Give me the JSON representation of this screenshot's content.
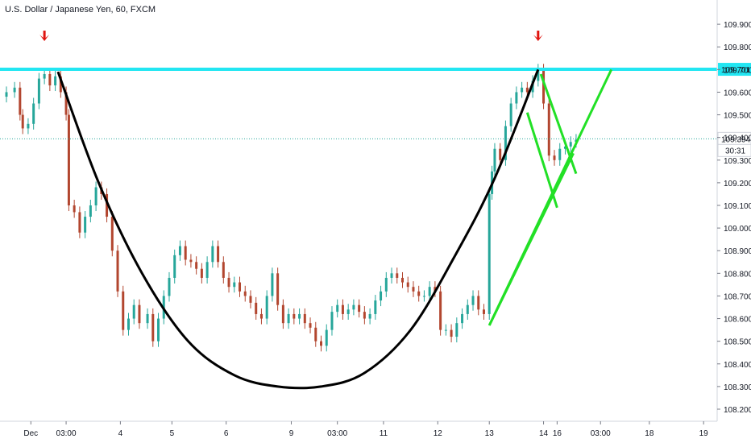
{
  "chart_data": {
    "type": "candlestick",
    "title": "U.S. Dollar / Japanese Yen, 60, FXCM",
    "ylim": [
      108.2,
      110.0
    ],
    "y_ticks": [
      108.2,
      108.3,
      108.4,
      108.5,
      108.6,
      108.7,
      108.8,
      108.9,
      109.0,
      109.1,
      109.2,
      109.3,
      109.4,
      109.5,
      109.6,
      109.7,
      109.8,
      109.9
    ],
    "x_ticks": [
      {
        "label": "Dec",
        "x": 0.9
      },
      {
        "label": "03:00",
        "x": 2.2
      },
      {
        "label": "4",
        "x": 4.2
      },
      {
        "label": "5",
        "x": 6.1
      },
      {
        "label": "6",
        "x": 8.1
      },
      {
        "label": "9",
        "x": 10.5
      },
      {
        "label": "03:00",
        "x": 12.2
      },
      {
        "label": "11",
        "x": 13.9
      },
      {
        "label": "12",
        "x": 15.9
      },
      {
        "label": "13",
        "x": 17.8
      },
      {
        "label": "14",
        "x": 19.8
      },
      {
        "label": "16",
        "x": 20.3
      },
      {
        "label": "03:00",
        "x": 21.9
      },
      {
        "label": "18",
        "x": 23.7
      },
      {
        "label": "19",
        "x": 25.7
      }
    ],
    "xlim": [
      0,
      26.2
    ],
    "price_labels": {
      "resistance": "109.701",
      "current": "109.394",
      "countdown": "30:31"
    },
    "resistance_level": 109.701,
    "current_price": 109.394,
    "series": [
      {
        "x": 0.0,
        "y": 109.6
      },
      {
        "x": 0.3,
        "y": 109.62
      },
      {
        "x": 0.5,
        "y": 109.5
      },
      {
        "x": 0.6,
        "y": 109.44
      },
      {
        "x": 0.8,
        "y": 109.46
      },
      {
        "x": 1.0,
        "y": 109.55
      },
      {
        "x": 1.2,
        "y": 109.66
      },
      {
        "x": 1.4,
        "y": 109.68
      },
      {
        "x": 1.6,
        "y": 109.63
      },
      {
        "x": 1.8,
        "y": 109.67
      },
      {
        "x": 2.0,
        "y": 109.6
      },
      {
        "x": 2.2,
        "y": 109.5
      },
      {
        "x": 2.3,
        "y": 109.1
      },
      {
        "x": 2.5,
        "y": 109.07
      },
      {
        "x": 2.7,
        "y": 108.98
      },
      {
        "x": 2.9,
        "y": 109.05
      },
      {
        "x": 3.1,
        "y": 109.1
      },
      {
        "x": 3.3,
        "y": 109.18
      },
      {
        "x": 3.5,
        "y": 109.15
      },
      {
        "x": 3.7,
        "y": 109.05
      },
      {
        "x": 3.9,
        "y": 108.9
      },
      {
        "x": 4.1,
        "y": 108.72
      },
      {
        "x": 4.3,
        "y": 108.55
      },
      {
        "x": 4.5,
        "y": 108.6
      },
      {
        "x": 4.7,
        "y": 108.66
      },
      {
        "x": 4.9,
        "y": 108.58
      },
      {
        "x": 5.2,
        "y": 108.62
      },
      {
        "x": 5.4,
        "y": 108.5
      },
      {
        "x": 5.6,
        "y": 108.6
      },
      {
        "x": 5.8,
        "y": 108.7
      },
      {
        "x": 6.0,
        "y": 108.78
      },
      {
        "x": 6.2,
        "y": 108.88
      },
      {
        "x": 6.4,
        "y": 108.92
      },
      {
        "x": 6.6,
        "y": 108.86
      },
      {
        "x": 6.8,
        "y": 108.85
      },
      {
        "x": 7.0,
        "y": 108.82
      },
      {
        "x": 7.2,
        "y": 108.78
      },
      {
        "x": 7.4,
        "y": 108.85
      },
      {
        "x": 7.6,
        "y": 108.92
      },
      {
        "x": 7.8,
        "y": 108.85
      },
      {
        "x": 8.0,
        "y": 108.78
      },
      {
        "x": 8.2,
        "y": 108.74
      },
      {
        "x": 8.4,
        "y": 108.76
      },
      {
        "x": 8.6,
        "y": 108.72
      },
      {
        "x": 8.8,
        "y": 108.7
      },
      {
        "x": 9.0,
        "y": 108.67
      },
      {
        "x": 9.2,
        "y": 108.62
      },
      {
        "x": 9.4,
        "y": 108.6
      },
      {
        "x": 9.6,
        "y": 108.7
      },
      {
        "x": 9.8,
        "y": 108.8
      },
      {
        "x": 10.0,
        "y": 108.66
      },
      {
        "x": 10.2,
        "y": 108.58
      },
      {
        "x": 10.4,
        "y": 108.62
      },
      {
        "x": 10.6,
        "y": 108.6
      },
      {
        "x": 10.8,
        "y": 108.62
      },
      {
        "x": 11.0,
        "y": 108.58
      },
      {
        "x": 11.2,
        "y": 108.56
      },
      {
        "x": 11.4,
        "y": 108.5
      },
      {
        "x": 11.6,
        "y": 108.48
      },
      {
        "x": 11.8,
        "y": 108.55
      },
      {
        "x": 12.0,
        "y": 108.63
      },
      {
        "x": 12.2,
        "y": 108.66
      },
      {
        "x": 12.4,
        "y": 108.62
      },
      {
        "x": 12.6,
        "y": 108.64
      },
      {
        "x": 12.8,
        "y": 108.66
      },
      {
        "x": 13.0,
        "y": 108.63
      },
      {
        "x": 13.2,
        "y": 108.6
      },
      {
        "x": 13.4,
        "y": 108.62
      },
      {
        "x": 13.6,
        "y": 108.68
      },
      {
        "x": 13.8,
        "y": 108.72
      },
      {
        "x": 14.0,
        "y": 108.78
      },
      {
        "x": 14.2,
        "y": 108.8
      },
      {
        "x": 14.4,
        "y": 108.78
      },
      {
        "x": 14.6,
        "y": 108.76
      },
      {
        "x": 14.8,
        "y": 108.74
      },
      {
        "x": 15.0,
        "y": 108.72
      },
      {
        "x": 15.2,
        "y": 108.7
      },
      {
        "x": 15.4,
        "y": 108.7
      },
      {
        "x": 15.6,
        "y": 108.74
      },
      {
        "x": 15.8,
        "y": 108.72
      },
      {
        "x": 16.0,
        "y": 108.55
      },
      {
        "x": 16.2,
        "y": 108.55
      },
      {
        "x": 16.4,
        "y": 108.52
      },
      {
        "x": 16.6,
        "y": 108.58
      },
      {
        "x": 16.8,
        "y": 108.62
      },
      {
        "x": 17.0,
        "y": 108.66
      },
      {
        "x": 17.2,
        "y": 108.7
      },
      {
        "x": 17.4,
        "y": 108.64
      },
      {
        "x": 17.6,
        "y": 108.62
      },
      {
        "x": 17.8,
        "y": 109.15
      },
      {
        "x": 17.9,
        "y": 109.25
      },
      {
        "x": 18.0,
        "y": 109.35
      },
      {
        "x": 18.2,
        "y": 109.3
      },
      {
        "x": 18.4,
        "y": 109.45
      },
      {
        "x": 18.6,
        "y": 109.55
      },
      {
        "x": 18.8,
        "y": 109.6
      },
      {
        "x": 19.0,
        "y": 109.62
      },
      {
        "x": 19.2,
        "y": 109.6
      },
      {
        "x": 19.4,
        "y": 109.65
      },
      {
        "x": 19.6,
        "y": 109.7
      },
      {
        "x": 19.8,
        "y": 109.55
      },
      {
        "x": 20.0,
        "y": 109.32
      },
      {
        "x": 20.2,
        "y": 109.3
      },
      {
        "x": 20.4,
        "y": 109.35
      },
      {
        "x": 20.6,
        "y": 109.36
      },
      {
        "x": 20.8,
        "y": 109.38
      },
      {
        "x": 21.0,
        "y": 109.39
      }
    ],
    "annotations": {
      "cup_curve": [
        {
          "x": 1.9,
          "y": 109.69
        },
        {
          "x": 3.4,
          "y": 109.2
        },
        {
          "x": 5.0,
          "y": 108.8
        },
        {
          "x": 6.7,
          "y": 108.5
        },
        {
          "x": 8.4,
          "y": 108.35
        },
        {
          "x": 10.0,
          "y": 108.3
        },
        {
          "x": 11.6,
          "y": 108.3
        },
        {
          "x": 13.2,
          "y": 108.36
        },
        {
          "x": 14.9,
          "y": 108.55
        },
        {
          "x": 16.5,
          "y": 108.87
        },
        {
          "x": 18.0,
          "y": 109.22
        },
        {
          "x": 19.6,
          "y": 109.7
        }
      ],
      "green_lines": [
        {
          "from": {
            "x": 17.8,
            "y": 108.57
          },
          "to": {
            "x": 22.3,
            "y": 109.7
          }
        },
        {
          "from": {
            "x": 17.8,
            "y": 108.57
          },
          "to": {
            "x": 20.9,
            "y": 109.33
          }
        },
        {
          "from": {
            "x": 19.2,
            "y": 109.51
          },
          "to": {
            "x": 20.3,
            "y": 109.09
          }
        },
        {
          "from": {
            "x": 19.7,
            "y": 109.68
          },
          "to": {
            "x": 21.0,
            "y": 109.24
          }
        }
      ],
      "arrows": [
        {
          "x": 1.4,
          "y": 109.84
        },
        {
          "x": 19.6,
          "y": 109.84
        }
      ]
    },
    "colors": {
      "bull": "#26a69a",
      "bear": "#b2462f",
      "resistance": "#22e6f2",
      "cup": "#000000",
      "pattern": "#22e026",
      "arrow": "#e0140f",
      "current_label_bg": "#ffffff",
      "countdown_bg": "#ffffff"
    }
  }
}
